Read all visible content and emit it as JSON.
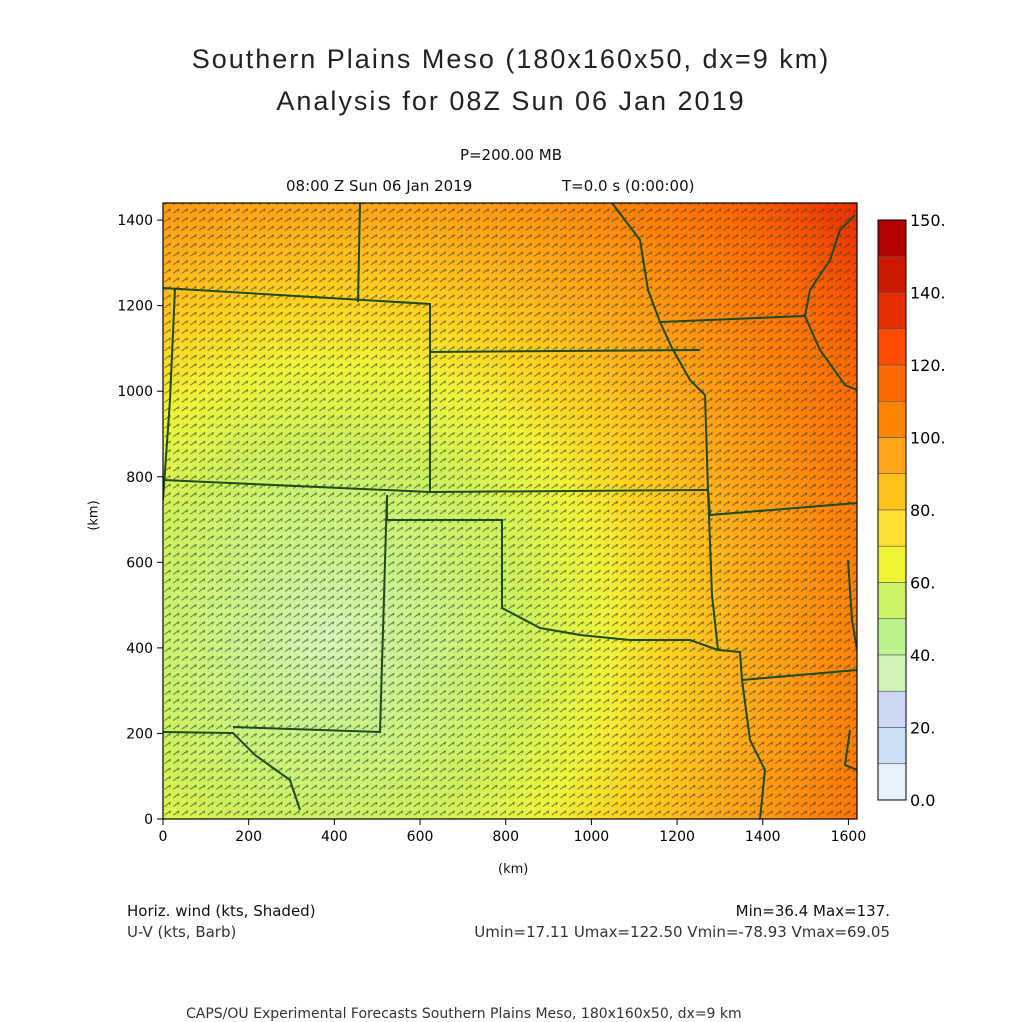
{
  "header": {
    "title_line1": "Southern Plains Meso (180x160x50, dx=9 km)",
    "title_line2": "Analysis for 08Z Sun 06 Jan 2019",
    "level": "P=200.00 MB",
    "time": "08:00 Z Sun 06 Jan 2019",
    "tstep": "T=0.0 s (0:00:00)"
  },
  "axes": {
    "x_label": "(km)",
    "y_label": "(km)",
    "x_ticks": [
      "0",
      "200",
      "400",
      "600",
      "800",
      "1000",
      "1200",
      "1400",
      "1600"
    ],
    "y_ticks": [
      "0",
      "200",
      "400",
      "600",
      "800",
      "1000",
      "1200",
      "1400"
    ],
    "x_range": [
      0,
      1620
    ],
    "y_range": [
      0,
      1440
    ]
  },
  "colorbar": {
    "labels": [
      "150.",
      "140.",
      "120.",
      "100.",
      "80.",
      "60.",
      "40.",
      "20.",
      "0.0"
    ],
    "colors": [
      "#b30000",
      "#cc1a00",
      "#e62e00",
      "#ff4d00",
      "#ff6a00",
      "#ff8500",
      "#ffa31a",
      "#ffc21a",
      "#ffe033",
      "#f0f533",
      "#ccf266",
      "#bbf28c",
      "#d0f5b5",
      "#ccd6f5",
      "#cce0f5",
      "#e6f2fa"
    ]
  },
  "footer": {
    "left1": "Horiz. wind (kts, Shaded)",
    "left2": "U-V (kts, Barb)",
    "right1": "Min=36.4 Max=137.",
    "right2": "Umin=17.11 Umax=122.50 Vmin=-78.93 Vmax=69.05",
    "credit": "CAPS/OU Experimental Forecasts  Southern Plains Meso, 180x160x50, dx=9 km"
  }
}
